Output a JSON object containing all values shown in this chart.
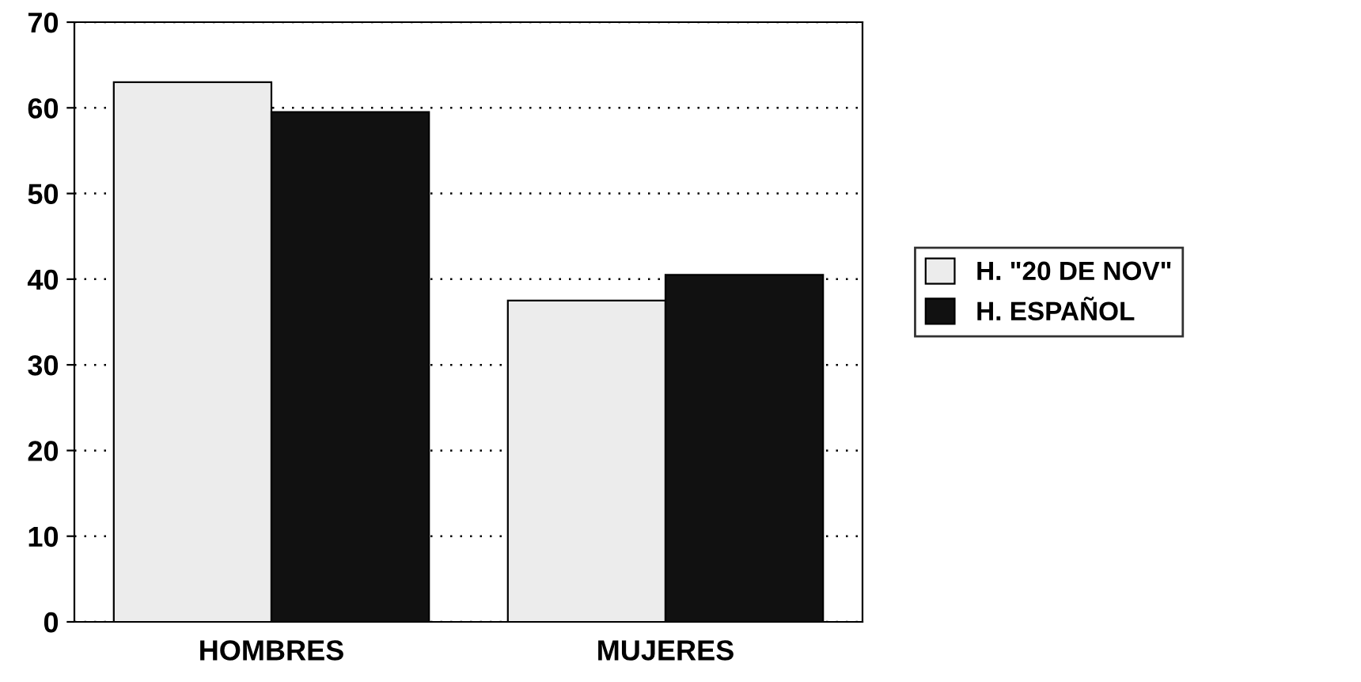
{
  "chart_data": {
    "type": "bar",
    "categories": [
      "HOMBRES",
      "MUJERES"
    ],
    "series": [
      {
        "name": "H. \"20 DE NOV\"",
        "color": "#ececec",
        "values": [
          63,
          37.5
        ]
      },
      {
        "name": "H. ESPAÑOL",
        "color": "#111111",
        "values": [
          59.5,
          40.5
        ]
      }
    ],
    "ylim": [
      0,
      70
    ],
    "yticks": [
      0,
      10,
      20,
      30,
      40,
      50,
      60,
      70
    ],
    "grid": "y",
    "legend": "right"
  }
}
